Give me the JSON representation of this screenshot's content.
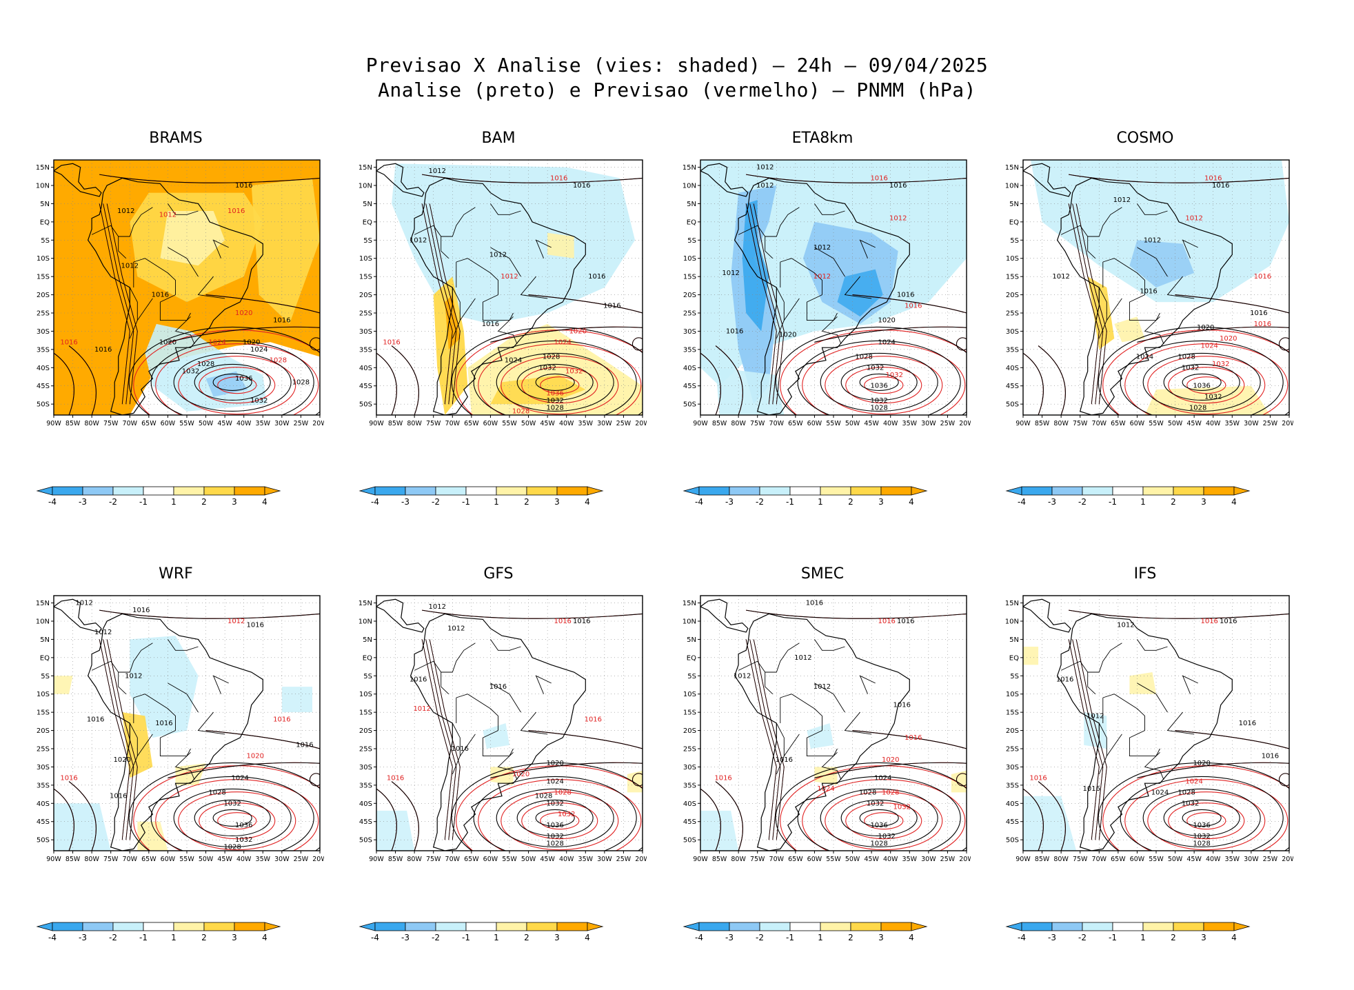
{
  "figure": {
    "title_line1": "Previsao X Analise (vies: shaded) – 24h – 09/04/2025",
    "title_line2": "Analise (preto) e Previsao (vermelho) – PNMM (hPa)"
  },
  "colors": {
    "neg4": "#3aa8ee",
    "neg3": "#8ec9f5",
    "neg2": "#c8f0fa",
    "neutral": "#ffffff",
    "pos2": "#fff3a8",
    "pos3": "#ffd94a",
    "pos4": "#ffaa00",
    "analysis_line": "#000000",
    "forecast_line": "#e02020",
    "grid": "#888888"
  },
  "axes": {
    "lat_labels": [
      "15N",
      "10N",
      "5N",
      "EQ",
      "5S",
      "10S",
      "15S",
      "20S",
      "25S",
      "30S",
      "35S",
      "40S",
      "45S",
      "50S"
    ],
    "lon_labels": [
      "90W",
      "85W",
      "80W",
      "75W",
      "70W",
      "65W",
      "60W",
      "55W",
      "50W",
      "45W",
      "40W",
      "35W",
      "30W",
      "25W",
      "20W"
    ]
  },
  "colorbar": {
    "labels": [
      "-4",
      "-3",
      "-2",
      "-1",
      "1",
      "2",
      "3",
      "4"
    ]
  },
  "panels": [
    {
      "id": "brams",
      "title": "BRAMS",
      "bias": "warm_strong",
      "labels": [
        {
          "t": "1016",
          "c": "k",
          "lon": -40,
          "lat": 10
        },
        {
          "t": "1012",
          "c": "r",
          "lon": -60,
          "lat": 2
        },
        {
          "t": "1016",
          "c": "r",
          "lon": -42,
          "lat": 3
        },
        {
          "t": "1012",
          "c": "k",
          "lon": -71,
          "lat": 3
        },
        {
          "t": "1012",
          "c": "k",
          "lon": -70,
          "lat": -12
        },
        {
          "t": "1016",
          "c": "k",
          "lon": -62,
          "lat": -20
        },
        {
          "t": "1020",
          "c": "r",
          "lon": -40,
          "lat": -25
        },
        {
          "t": "1016",
          "c": "k",
          "lon": -30,
          "lat": -27
        },
        {
          "t": "1020",
          "c": "k",
          "lon": -60,
          "lat": -33
        },
        {
          "t": "1024",
          "c": "r",
          "lon": -47,
          "lat": -33
        },
        {
          "t": "1020",
          "c": "k",
          "lon": -38,
          "lat": -33
        },
        {
          "t": "1024",
          "c": "k",
          "lon": -36,
          "lat": -35
        },
        {
          "t": "1016",
          "c": "r",
          "lon": -86,
          "lat": -33
        },
        {
          "t": "1016",
          "c": "k",
          "lon": -77,
          "lat": -35
        },
        {
          "t": "1028",
          "c": "k",
          "lon": -50,
          "lat": -39
        },
        {
          "t": "1028",
          "c": "r",
          "lon": -31,
          "lat": -38
        },
        {
          "t": "1032",
          "c": "k",
          "lon": -54,
          "lat": -41
        },
        {
          "t": "1036",
          "c": "k",
          "lon": -40,
          "lat": -43
        },
        {
          "t": "1028",
          "c": "k",
          "lon": -25,
          "lat": -44
        },
        {
          "t": "1032",
          "c": "k",
          "lon": -36,
          "lat": -49
        }
      ]
    },
    {
      "id": "bam",
      "title": "BAM",
      "bias": "mixed_warm_south",
      "labels": [
        {
          "t": "1012",
          "c": "k",
          "lon": -74,
          "lat": 14
        },
        {
          "t": "1016",
          "c": "r",
          "lon": -42,
          "lat": 12
        },
        {
          "t": "1016",
          "c": "k",
          "lon": -36,
          "lat": 10
        },
        {
          "t": "1012",
          "c": "k",
          "lon": -79,
          "lat": -5
        },
        {
          "t": "1012",
          "c": "k",
          "lon": -58,
          "lat": -9
        },
        {
          "t": "1012",
          "c": "r",
          "lon": -55,
          "lat": -15
        },
        {
          "t": "1016",
          "c": "k",
          "lon": -32,
          "lat": -15
        },
        {
          "t": "1016",
          "c": "k",
          "lon": -28,
          "lat": -23
        },
        {
          "t": "1016",
          "c": "k",
          "lon": -60,
          "lat": -28
        },
        {
          "t": "1020",
          "c": "r",
          "lon": -37,
          "lat": -30
        },
        {
          "t": "1016",
          "c": "r",
          "lon": -86,
          "lat": -33
        },
        {
          "t": "1024",
          "c": "r",
          "lon": -41,
          "lat": -33
        },
        {
          "t": "1028",
          "c": "k",
          "lon": -44,
          "lat": -37
        },
        {
          "t": "1024",
          "c": "k",
          "lon": -54,
          "lat": -38
        },
        {
          "t": "1032",
          "c": "k",
          "lon": -45,
          "lat": -40
        },
        {
          "t": "1032",
          "c": "r",
          "lon": -38,
          "lat": -41
        },
        {
          "t": "1036",
          "c": "r",
          "lon": -43,
          "lat": -47
        },
        {
          "t": "1032",
          "c": "k",
          "lon": -43,
          "lat": -49
        },
        {
          "t": "1028",
          "c": "k",
          "lon": -43,
          "lat": -51
        },
        {
          "t": "1028",
          "c": "r",
          "lon": -52,
          "lat": -52
        }
      ]
    },
    {
      "id": "eta8km",
      "title": "ETA8km",
      "bias": "cold_strong",
      "labels": [
        {
          "t": "1012",
          "c": "k",
          "lon": -73,
          "lat": 15
        },
        {
          "t": "1016",
          "c": "r",
          "lon": -43,
          "lat": 12
        },
        {
          "t": "1016",
          "c": "k",
          "lon": -38,
          "lat": 10
        },
        {
          "t": "1012",
          "c": "k",
          "lon": -73,
          "lat": 10
        },
        {
          "t": "1012",
          "c": "r",
          "lon": -38,
          "lat": 1
        },
        {
          "t": "1012",
          "c": "k",
          "lon": -58,
          "lat": -7
        },
        {
          "t": "1012",
          "c": "k",
          "lon": -82,
          "lat": -14
        },
        {
          "t": "1012",
          "c": "r",
          "lon": -58,
          "lat": -15
        },
        {
          "t": "1016",
          "c": "k",
          "lon": -36,
          "lat": -20
        },
        {
          "t": "1016",
          "c": "r",
          "lon": -34,
          "lat": -23
        },
        {
          "t": "1020",
          "c": "k",
          "lon": -41,
          "lat": -27
        },
        {
          "t": "1016",
          "c": "k",
          "lon": -81,
          "lat": -30
        },
        {
          "t": "1020",
          "c": "k",
          "lon": -67,
          "lat": -31
        },
        {
          "t": "1024",
          "c": "k",
          "lon": -41,
          "lat": -33
        },
        {
          "t": "1028",
          "c": "k",
          "lon": -47,
          "lat": -37
        },
        {
          "t": "1032",
          "c": "k",
          "lon": -44,
          "lat": -40
        },
        {
          "t": "1032",
          "c": "r",
          "lon": -39,
          "lat": -42
        },
        {
          "t": "1036",
          "c": "k",
          "lon": -43,
          "lat": -45
        },
        {
          "t": "1032",
          "c": "k",
          "lon": -43,
          "lat": -49
        },
        {
          "t": "1028",
          "c": "k",
          "lon": -43,
          "lat": -51
        }
      ]
    },
    {
      "id": "cosmo",
      "title": "COSMO",
      "bias": "mild_mixed",
      "labels": [
        {
          "t": "1016",
          "c": "r",
          "lon": -40,
          "lat": 12
        },
        {
          "t": "1016",
          "c": "k",
          "lon": -38,
          "lat": 10
        },
        {
          "t": "1012",
          "c": "k",
          "lon": -64,
          "lat": 6
        },
        {
          "t": "1012",
          "c": "r",
          "lon": -45,
          "lat": 1
        },
        {
          "t": "1012",
          "c": "k",
          "lon": -56,
          "lat": -5
        },
        {
          "t": "1012",
          "c": "k",
          "lon": -80,
          "lat": -15
        },
        {
          "t": "1016",
          "c": "k",
          "lon": -57,
          "lat": -19
        },
        {
          "t": "1016",
          "c": "r",
          "lon": -27,
          "lat": -15
        },
        {
          "t": "1016",
          "c": "k",
          "lon": -28,
          "lat": -25
        },
        {
          "t": "1016",
          "c": "r",
          "lon": -27,
          "lat": -28
        },
        {
          "t": "1020",
          "c": "k",
          "lon": -42,
          "lat": -29
        },
        {
          "t": "1020",
          "c": "r",
          "lon": -36,
          "lat": -32
        },
        {
          "t": "1024",
          "c": "r",
          "lon": -41,
          "lat": -34
        },
        {
          "t": "1024",
          "c": "k",
          "lon": -58,
          "lat": -37
        },
        {
          "t": "1028",
          "c": "k",
          "lon": -47,
          "lat": -37
        },
        {
          "t": "1032",
          "c": "r",
          "lon": -38,
          "lat": -39
        },
        {
          "t": "1032",
          "c": "k",
          "lon": -46,
          "lat": -40
        },
        {
          "t": "1036",
          "c": "k",
          "lon": -43,
          "lat": -45
        },
        {
          "t": "1032",
          "c": "k",
          "lon": -40,
          "lat": -48
        },
        {
          "t": "1028",
          "c": "k",
          "lon": -44,
          "lat": -51
        }
      ]
    },
    {
      "id": "wrf",
      "title": "WRF",
      "bias": "mixed_light",
      "labels": [
        {
          "t": "1012",
          "c": "k",
          "lon": -82,
          "lat": 15
        },
        {
          "t": "1016",
          "c": "k",
          "lon": -67,
          "lat": 13
        },
        {
          "t": "1012",
          "c": "r",
          "lon": -42,
          "lat": 10
        },
        {
          "t": "1016",
          "c": "k",
          "lon": -37,
          "lat": 9
        },
        {
          "t": "1012",
          "c": "k",
          "lon": -77,
          "lat": 7
        },
        {
          "t": "1012",
          "c": "k",
          "lon": -69,
          "lat": -5
        },
        {
          "t": "1016",
          "c": "k",
          "lon": -79,
          "lat": -17
        },
        {
          "t": "1016",
          "c": "r",
          "lon": -30,
          "lat": -17
        },
        {
          "t": "1016",
          "c": "k",
          "lon": -61,
          "lat": -18
        },
        {
          "t": "1016",
          "c": "k",
          "lon": -24,
          "lat": -24
        },
        {
          "t": "1020",
          "c": "k",
          "lon": -72,
          "lat": -28
        },
        {
          "t": "1020",
          "c": "r",
          "lon": -37,
          "lat": -27
        },
        {
          "t": "1024",
          "c": "k",
          "lon": -41,
          "lat": -33
        },
        {
          "t": "1028",
          "c": "k",
          "lon": -47,
          "lat": -37
        },
        {
          "t": "1032",
          "c": "k",
          "lon": -43,
          "lat": -40
        },
        {
          "t": "1036",
          "c": "k",
          "lon": -40,
          "lat": -46
        },
        {
          "t": "1032",
          "c": "k",
          "lon": -40,
          "lat": -50
        },
        {
          "t": "1028",
          "c": "k",
          "lon": -43,
          "lat": -52
        },
        {
          "t": "1016",
          "c": "r",
          "lon": -86,
          "lat": -33
        },
        {
          "t": "1016",
          "c": "k",
          "lon": -73,
          "lat": -38
        }
      ]
    },
    {
      "id": "gfs",
      "title": "GFS",
      "bias": "near_zero",
      "labels": [
        {
          "t": "1012",
          "c": "k",
          "lon": -74,
          "lat": 14
        },
        {
          "t": "1016",
          "c": "r",
          "lon": -41,
          "lat": 10
        },
        {
          "t": "1016",
          "c": "k",
          "lon": -36,
          "lat": 10
        },
        {
          "t": "1012",
          "c": "k",
          "lon": -69,
          "lat": 8
        },
        {
          "t": "1016",
          "c": "k",
          "lon": -79,
          "lat": -6
        },
        {
          "t": "1012",
          "c": "r",
          "lon": -78,
          "lat": -14
        },
        {
          "t": "1016",
          "c": "k",
          "lon": -58,
          "lat": -8
        },
        {
          "t": "1016",
          "c": "r",
          "lon": -33,
          "lat": -17
        },
        {
          "t": "1016",
          "c": "k",
          "lon": -68,
          "lat": -25
        },
        {
          "t": "1020",
          "c": "k",
          "lon": -43,
          "lat": -29
        },
        {
          "t": "1020",
          "c": "r",
          "lon": -52,
          "lat": -32
        },
        {
          "t": "1016",
          "c": "r",
          "lon": -85,
          "lat": -33
        },
        {
          "t": "1024",
          "c": "k",
          "lon": -43,
          "lat": -34
        },
        {
          "t": "1028",
          "c": "r",
          "lon": -41,
          "lat": -37
        },
        {
          "t": "1028",
          "c": "k",
          "lon": -46,
          "lat": -38
        },
        {
          "t": "1032",
          "c": "k",
          "lon": -43,
          "lat": -40
        },
        {
          "t": "1032",
          "c": "r",
          "lon": -40,
          "lat": -43
        },
        {
          "t": "1036",
          "c": "k",
          "lon": -43,
          "lat": -46
        },
        {
          "t": "1032",
          "c": "k",
          "lon": -43,
          "lat": -49
        },
        {
          "t": "1028",
          "c": "k",
          "lon": -43,
          "lat": -51
        }
      ]
    },
    {
      "id": "smec",
      "title": "SMEC",
      "bias": "near_zero",
      "labels": [
        {
          "t": "1016",
          "c": "k",
          "lon": -60,
          "lat": 15
        },
        {
          "t": "1016",
          "c": "r",
          "lon": -41,
          "lat": 10
        },
        {
          "t": "1016",
          "c": "k",
          "lon": -36,
          "lat": 10
        },
        {
          "t": "1012",
          "c": "k",
          "lon": -63,
          "lat": 0
        },
        {
          "t": "1012",
          "c": "k",
          "lon": -79,
          "lat": -5
        },
        {
          "t": "1012",
          "c": "k",
          "lon": -58,
          "lat": -8
        },
        {
          "t": "1016",
          "c": "k",
          "lon": -37,
          "lat": -13
        },
        {
          "t": "1016",
          "c": "r",
          "lon": -34,
          "lat": -22
        },
        {
          "t": "1016",
          "c": "k",
          "lon": -68,
          "lat": -28
        },
        {
          "t": "1020",
          "c": "r",
          "lon": -40,
          "lat": -28
        },
        {
          "t": "1016",
          "c": "r",
          "lon": -84,
          "lat": -33
        },
        {
          "t": "1024",
          "c": "k",
          "lon": -42,
          "lat": -33
        },
        {
          "t": "1024",
          "c": "r",
          "lon": -57,
          "lat": -36
        },
        {
          "t": "1028",
          "c": "k",
          "lon": -46,
          "lat": -37
        },
        {
          "t": "1028",
          "c": "r",
          "lon": -40,
          "lat": -37
        },
        {
          "t": "1032",
          "c": "k",
          "lon": -44,
          "lat": -40
        },
        {
          "t": "1032",
          "c": "r",
          "lon": -37,
          "lat": -41
        },
        {
          "t": "1036",
          "c": "k",
          "lon": -43,
          "lat": -46
        },
        {
          "t": "1032",
          "c": "k",
          "lon": -41,
          "lat": -49
        },
        {
          "t": "1028",
          "c": "k",
          "lon": -43,
          "lat": -51
        }
      ]
    },
    {
      "id": "ifs",
      "title": "IFS",
      "bias": "near_zero_cold_west",
      "labels": [
        {
          "t": "1016",
          "c": "r",
          "lon": -41,
          "lat": 10
        },
        {
          "t": "1016",
          "c": "k",
          "lon": -36,
          "lat": 10
        },
        {
          "t": "1012",
          "c": "k",
          "lon": -63,
          "lat": 9
        },
        {
          "t": "1012",
          "c": "k",
          "lon": -71,
          "lat": -16
        },
        {
          "t": "1016",
          "c": "k",
          "lon": -79,
          "lat": -6
        },
        {
          "t": "1016",
          "c": "k",
          "lon": -31,
          "lat": -18
        },
        {
          "t": "1016",
          "c": "k",
          "lon": -25,
          "lat": -27
        },
        {
          "t": "1020",
          "c": "k",
          "lon": -43,
          "lat": -29
        },
        {
          "t": "1016",
          "c": "r",
          "lon": -86,
          "lat": -33
        },
        {
          "t": "1016",
          "c": "k",
          "lon": -72,
          "lat": -36
        },
        {
          "t": "1024",
          "c": "r",
          "lon": -45,
          "lat": -34
        },
        {
          "t": "1024",
          "c": "k",
          "lon": -54,
          "lat": -37
        },
        {
          "t": "1028",
          "c": "k",
          "lon": -47,
          "lat": -37
        },
        {
          "t": "1032",
          "c": "k",
          "lon": -46,
          "lat": -40
        },
        {
          "t": "1036",
          "c": "k",
          "lon": -43,
          "lat": -46
        },
        {
          "t": "1032",
          "c": "k",
          "lon": -43,
          "lat": -49
        },
        {
          "t": "1028",
          "c": "k",
          "lon": -43,
          "lat": -51
        }
      ]
    }
  ]
}
